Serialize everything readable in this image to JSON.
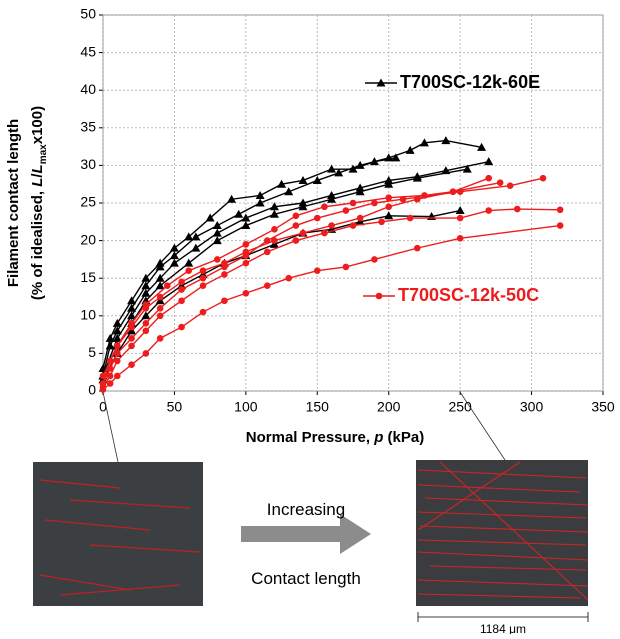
{
  "chart_data": {
    "type": "line",
    "y_label": {
      "line1": "Filament contact length",
      "prefix": "(% of idealised, ",
      "L": "L",
      "slash": "/",
      "sub": "max",
      "suffix": "x100)"
    },
    "x_label": {
      "prefix": "Normal Pressure, ",
      "var": "p",
      "suffix": " (kPa)"
    },
    "xlim": [
      0,
      350
    ],
    "xticks": [
      0,
      50,
      100,
      150,
      200,
      250,
      300,
      350
    ],
    "ylim": [
      0,
      50
    ],
    "yticks": [
      0,
      5,
      10,
      15,
      20,
      25,
      30,
      35,
      40,
      45,
      50
    ],
    "grid": true,
    "series": [
      {
        "name": "T700SC-12k-60E",
        "color": "#000000",
        "marker": "triangle",
        "curves": [
          {
            "x": [
              0,
              5,
              10,
              20,
              30,
              40,
              50,
              65,
              80,
              95,
              110,
              130,
              150,
              165,
              180,
              200,
              215,
              225,
              240,
              265
            ],
            "y": [
              2,
              6,
              8,
              11,
              14,
              16.5,
              18,
              20.5,
              22,
              23.5,
              25,
              26.5,
              28,
              29,
              30,
              31,
              32,
              33,
              33.3,
              32.4
            ]
          },
          {
            "x": [
              0,
              5,
              10,
              20,
              30,
              40,
              50,
              60,
              75,
              90,
              110,
              125,
              140,
              160,
              175,
              190,
              205
            ],
            "y": [
              3,
              7,
              9,
              12,
              15,
              17,
              19,
              20.5,
              23,
              25.5,
              26,
              27.5,
              28,
              29.5,
              29.5,
              30.5,
              31
            ]
          },
          {
            "x": [
              0,
              10,
              20,
              30,
              40,
              50,
              65,
              80,
              100,
              120,
              140,
              160,
              180,
              200,
              220,
              240,
              270
            ],
            "y": [
              2,
              7,
              10,
              13,
              15,
              17,
              19,
              21,
              23,
              24.5,
              25,
              26,
              27,
              28,
              28.5,
              29.3,
              30.5
            ]
          },
          {
            "x": [
              0,
              10,
              20,
              30,
              40,
              55,
              70,
              85,
              100,
              120,
              140,
              160,
              180,
              200,
              230,
              250
            ],
            "y": [
              1.5,
              5,
              8,
              10,
              12,
              14,
              15.5,
              17,
              18,
              19.5,
              21,
              21.5,
              22.5,
              23.3,
              23.2,
              24
            ]
          },
          {
            "x": [
              0,
              10,
              20,
              30,
              40,
              60,
              80,
              100,
              120,
              140,
              160,
              180,
              200,
              220,
              255
            ],
            "y": [
              2,
              6,
              9,
              12,
              14,
              17,
              20,
              22,
              23.5,
              24.5,
              25.5,
              26.5,
              27.5,
              28.3,
              29.5
            ]
          }
        ]
      },
      {
        "name": "T700SC-12k-50C",
        "color": "#ee1c1c",
        "marker": "circle",
        "curves": [
          {
            "x": [
              0,
              5,
              10,
              20,
              30,
              40,
              55,
              70,
              85,
              100,
              115,
              135,
              150,
              170,
              190,
              210,
              250,
              285,
              308
            ],
            "y": [
              1,
              3,
              5,
              7,
              9,
              11,
              13.5,
              15,
              16.5,
              18,
              20,
              22,
              23,
              24,
              25,
              25.5,
              26.5,
              27.3,
              28.3
            ]
          },
          {
            "x": [
              0,
              5,
              10,
              20,
              30,
              40,
              55,
              70,
              85,
              100,
              115,
              135,
              155,
              175,
              195,
              215,
              250,
              270,
              290,
              320
            ],
            "y": [
              0.5,
              2,
              4,
              6,
              8,
              10,
              12,
              14,
              15.5,
              17,
              18.5,
              20,
              21,
              22,
              22.5,
              23,
              23,
              24,
              24.2,
              24.1
            ]
          },
          {
            "x": [
              0,
              5,
              10,
              20,
              30,
              40,
              55,
              70,
              85,
              100,
              115,
              130,
              150,
              170,
              190,
              220,
              250,
              320
            ],
            "y": [
              0.2,
              1,
              2,
              3.5,
              5,
              7,
              8.5,
              10.5,
              12,
              13,
              14,
              15,
              16,
              16.5,
              17.5,
              19,
              20.3,
              22
            ]
          },
          {
            "x": [
              0,
              5,
              10,
              20,
              30,
              40,
              55,
              70,
              85,
              100,
              120,
              140,
              160,
              180,
              200,
              220,
              245,
              270
            ],
            "y": [
              1,
              4,
              6,
              8.5,
              11,
              12.5,
              14.5,
              16,
              17,
              18.5,
              20,
              21,
              22,
              23,
              24.5,
              25.5,
              26.5,
              28.3
            ]
          },
          {
            "x": [
              0,
              10,
              20,
              30,
              45,
              60,
              80,
              100,
              120,
              135,
              155,
              175,
              200,
              225,
              245,
              278
            ],
            "y": [
              2,
              6,
              9,
              11.5,
              14,
              16,
              17.5,
              19.5,
              21.5,
              23.3,
              24.5,
              25,
              25.7,
              26,
              26.5,
              27.7
            ]
          }
        ]
      }
    ]
  },
  "insets": {
    "arrow_top": "Increasing",
    "arrow_bottom": "Contact length",
    "scale": "1184 μm"
  }
}
